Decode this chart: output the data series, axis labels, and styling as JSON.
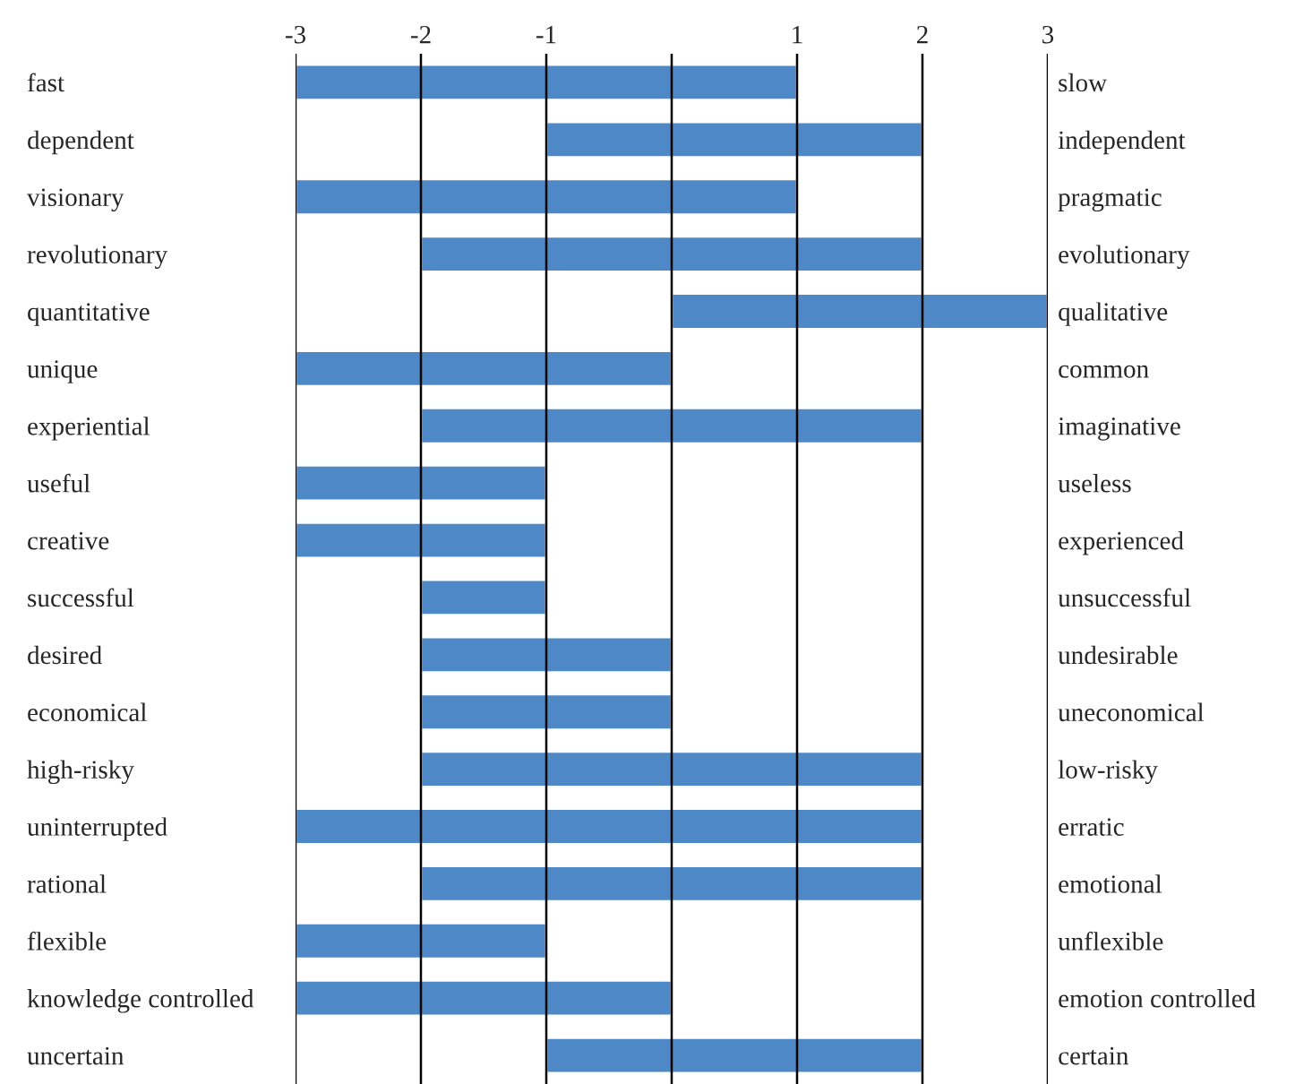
{
  "chart_data": {
    "type": "bar",
    "orientation": "horizontal",
    "color": "#4f88c6",
    "categories": [
      "fast",
      "dependent",
      "visionary",
      "revolutionary",
      "quantitative",
      "unique",
      "experiential",
      "useful",
      "creative",
      "successful",
      "desired",
      "economical",
      "high-risky",
      "uninterrupted",
      "rational",
      "flexible",
      "knowledge controlled",
      "uncertain"
    ],
    "y2_categories": [
      "slow",
      "independent",
      "pragmatic",
      "evolutionary",
      "qualitative",
      "common",
      "imaginative",
      "useless",
      "experienced",
      "unsuccessful",
      "undesirable",
      "uneconomical",
      "low-risky",
      "erratic",
      "emotional",
      "unflexible",
      "emotion controlled",
      "certain"
    ],
    "base": [
      -3,
      -1,
      -3,
      -2,
      0,
      -3,
      -2,
      -3,
      -3,
      -2,
      -2,
      -2,
      -2,
      -3,
      -2,
      -3,
      -3,
      -1
    ],
    "values": [
      4,
      3,
      4,
      4,
      3,
      3,
      4,
      2,
      2,
      1,
      2,
      2,
      4,
      5,
      4,
      2,
      3,
      3
    ],
    "xlim": [
      -3,
      3
    ],
    "xticks": [
      -3,
      -2,
      -1,
      {
        "value": 0,
        "label": null
      },
      1,
      2,
      3
    ],
    "grid": "x"
  }
}
